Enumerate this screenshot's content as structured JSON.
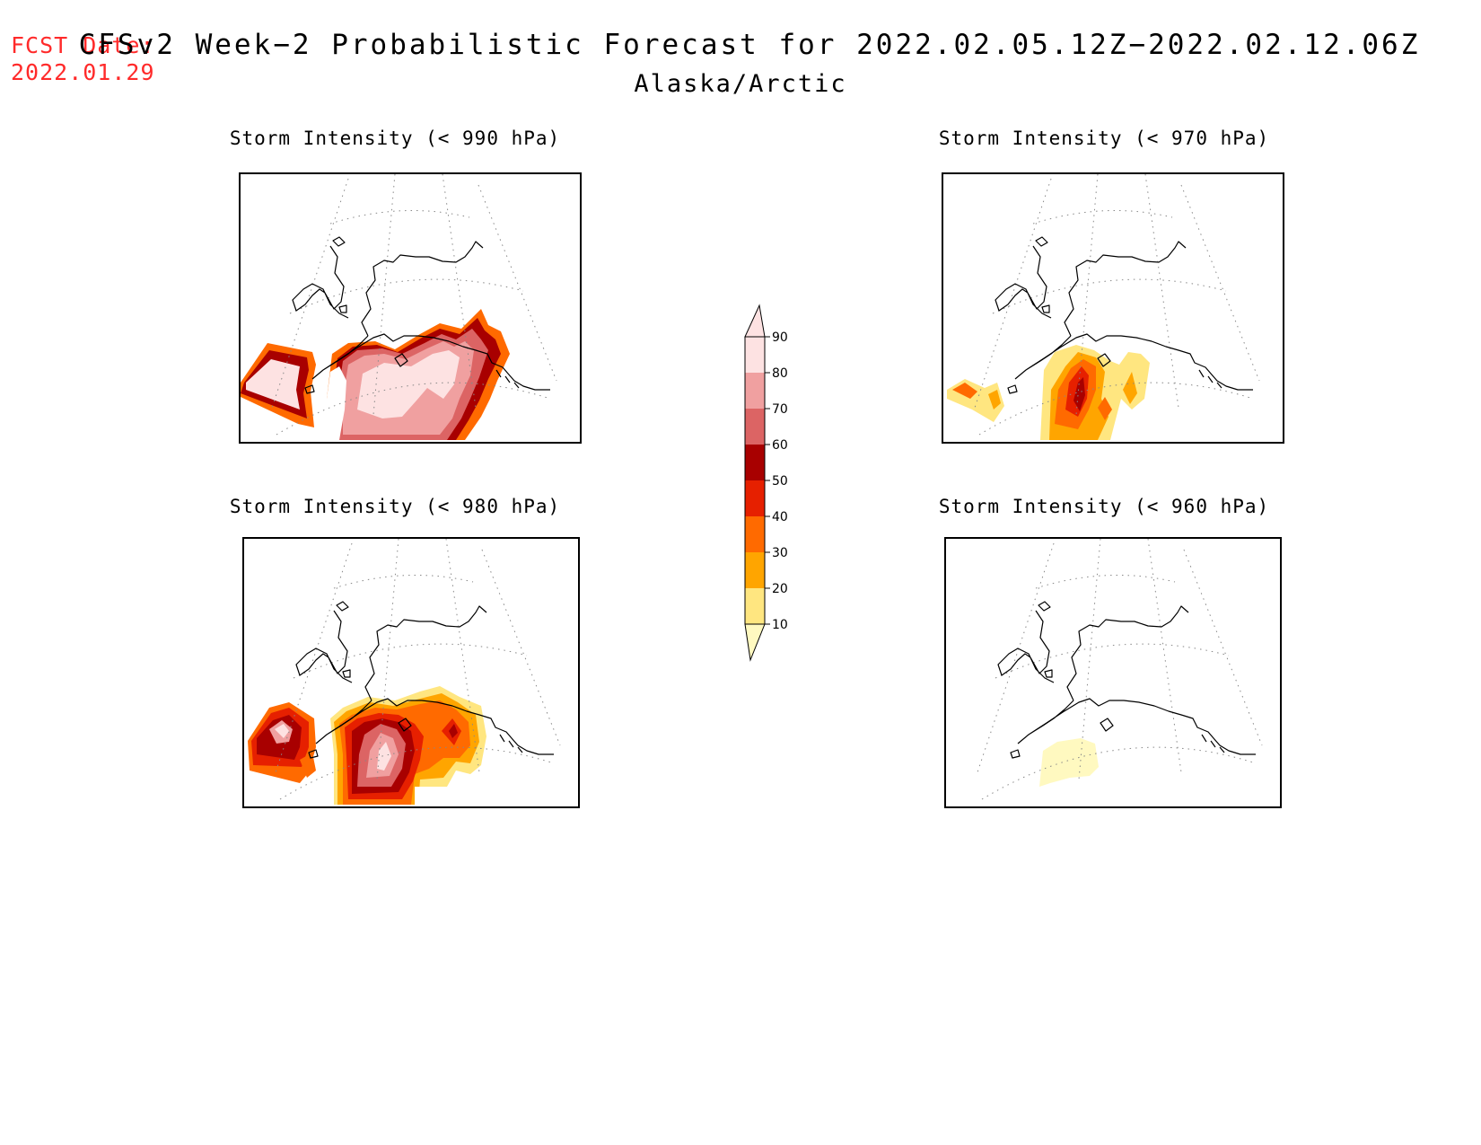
{
  "header": {
    "fcst_label": "FCST Date:",
    "fcst_date": "2022.01.29",
    "title": "CFSv2 Week−2 Probabilistic Forecast for 2022.02.05.12Z−2022.02.12.06Z",
    "region": "Alaska/Arctic"
  },
  "panels": [
    {
      "id": "p990",
      "title": "Storm Intensity (< 990 hPa)",
      "threshold_hPa": 990
    },
    {
      "id": "p970",
      "title": "Storm Intensity (< 970 hPa)",
      "threshold_hPa": 970
    },
    {
      "id": "p980",
      "title": "Storm Intensity (< 980 hPa)",
      "threshold_hPa": 980
    },
    {
      "id": "p960",
      "title": "Storm Intensity (< 960 hPa)",
      "threshold_hPa": 960
    }
  ],
  "colorbar": {
    "levels": [
      "10",
      "20",
      "30",
      "40",
      "50",
      "60",
      "70",
      "80",
      "90"
    ],
    "colors": [
      "#fff9c0",
      "#ffe680",
      "#ffa500",
      "#ff6a00",
      "#e62000",
      "#a80000",
      "#dc6464",
      "#f0a0a0",
      "#fde2e2"
    ]
  },
  "map": {
    "coastline_color": "#000000",
    "gridline_color": "#888888"
  }
}
